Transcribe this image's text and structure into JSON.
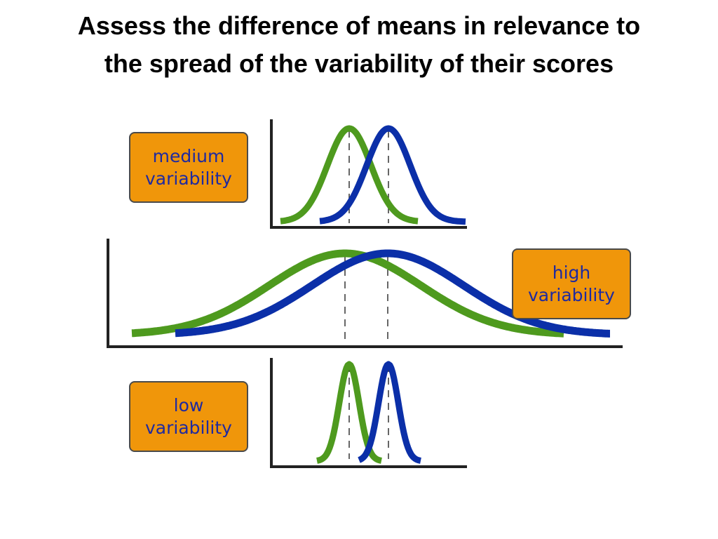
{
  "title": {
    "line1": "Assess the difference of means in relevance to",
    "line2": "the spread of the variability of their scores"
  },
  "colors": {
    "group_a": "#4E9A1E",
    "group_b": "#0B2FA8",
    "badge_fill": "#F0960A",
    "badge_text": "#1F2AA0"
  },
  "panels": [
    {
      "id": "medium",
      "label_line1": "medium",
      "label_line2": "variability",
      "relative_spread": 1.0
    },
    {
      "id": "high",
      "label_line1": "high",
      "label_line2": "variability",
      "relative_spread": 3.5
    },
    {
      "id": "low",
      "label_line1": "low",
      "label_line2": "variability",
      "relative_spread": 0.5
    }
  ]
}
